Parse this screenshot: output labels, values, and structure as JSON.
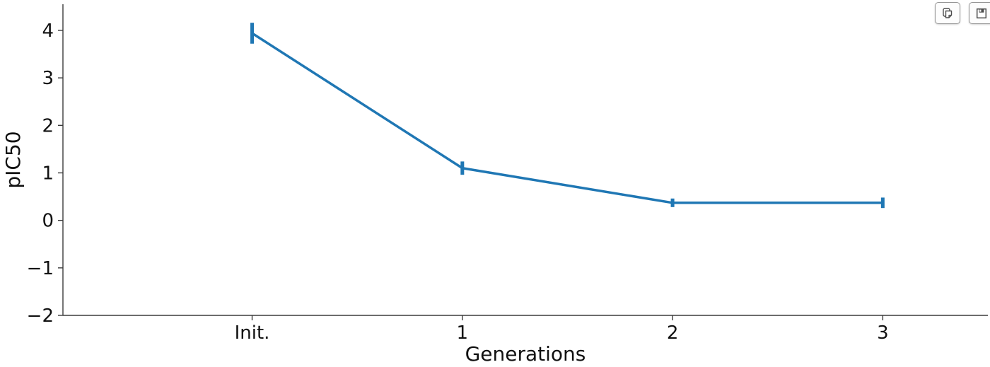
{
  "toolbar": {
    "buttons": [
      {
        "name": "copy-button",
        "icon": "copy-icon"
      },
      {
        "name": "save-button",
        "icon": "save-icon"
      }
    ]
  },
  "chart_data": {
    "type": "line",
    "title": "",
    "xlabel": "Generations",
    "ylabel": "pIC50",
    "categories": [
      "Init.",
      "1",
      "2",
      "3"
    ],
    "x": [
      0,
      1,
      2,
      3
    ],
    "series": [
      {
        "name": "pIC50",
        "color": "#1f77b4",
        "values": [
          3.94,
          1.1,
          0.37,
          0.37
        ],
        "errors": [
          0.22,
          0.14,
          0.09,
          0.11
        ]
      }
    ],
    "ytick_values": [
      4,
      3,
      2,
      1,
      0,
      -1,
      -2
    ],
    "ytick_labels": [
      "4",
      "3",
      "2",
      "1",
      "0",
      "−1",
      "−2"
    ],
    "ylim": [
      -2,
      4.55
    ],
    "xlim": [
      -0.9,
      3.5
    ],
    "grid": false,
    "legend": "none",
    "axis_color": "#3b3b3b",
    "text_color": "#111111",
    "background": "#ffffff",
    "line_width": 3.5,
    "errorbar_width": 5
  }
}
